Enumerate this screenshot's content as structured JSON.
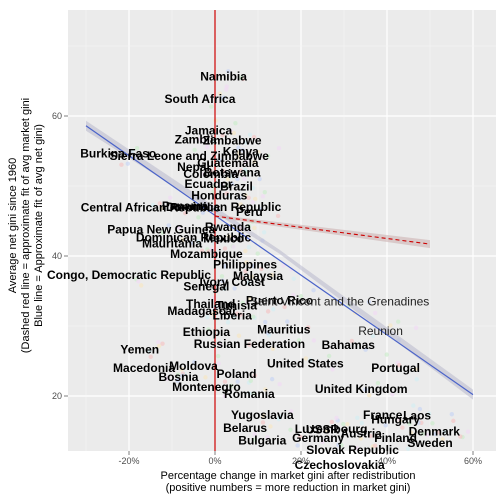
{
  "chart_data": {
    "type": "scatter",
    "xlabel": [
      "Percentage change in market gini after redistribution",
      "(positive numbers = more reduction in market gini)"
    ],
    "ylabel": [
      "Average net gini since 1960",
      "(Dashed red line = approximate fit of avg market gini",
      "Blue line = Approximate fit of avg net gini)"
    ],
    "xlim": [
      -0.35,
      0.62
    ],
    "ylim": [
      13,
      73
    ],
    "x_ticks": [
      {
        "value": -0.2,
        "label": "-20%"
      },
      {
        "value": 0,
        "label": "0%"
      },
      {
        "value": 0.2,
        "label": "20%"
      },
      {
        "value": 0.4,
        "label": "40%"
      },
      {
        "value": 0.6,
        "label": "60%"
      }
    ],
    "y_ticks": [
      {
        "value": 20,
        "label": "20"
      },
      {
        "value": 40,
        "label": "40"
      },
      {
        "value": 60,
        "label": "60"
      }
    ],
    "grid": true,
    "background": "#ebebeb",
    "vline": {
      "x": 0,
      "color": "#cc0000"
    },
    "fit_lines": [
      {
        "name": "net",
        "style": "solid",
        "color": "#4a63c9",
        "x": [
          -0.3,
          0.6
        ],
        "y": [
          58.6,
          20.2
        ]
      },
      {
        "name": "market",
        "style": "dashed",
        "color": "#cc0000",
        "x": [
          0.0,
          0.5
        ],
        "y": [
          45.7,
          41.7
        ]
      }
    ],
    "labels": [
      {
        "text": "Namibia",
        "x": 0.02,
        "y": 65.5
      },
      {
        "text": "South Africa",
        "x": -0.035,
        "y": 62.3
      },
      {
        "text": "Jamaica",
        "x": -0.015,
        "y": 57.8
      },
      {
        "text": "Zambia",
        "x": -0.045,
        "y": 56.5
      },
      {
        "text": "Zimbabwe",
        "x": 0.04,
        "y": 56.4
      },
      {
        "text": "Burkina Faso",
        "x": -0.225,
        "y": 54.5
      },
      {
        "text": "Sierra Leone and Zimbabwe",
        "x": -0.06,
        "y": 54.2
      },
      {
        "text": "Kenya",
        "x": 0.06,
        "y": 54.8
      },
      {
        "text": "Guatemala",
        "x": 0.03,
        "y": 53.2
      },
      {
        "text": "Nepal",
        "x": -0.05,
        "y": 52.6
      },
      {
        "text": "Botswana",
        "x": 0.04,
        "y": 51.8
      },
      {
        "text": "Colombia",
        "x": -0.01,
        "y": 51.6
      },
      {
        "text": "Ecuador",
        "x": -0.015,
        "y": 50.2
      },
      {
        "text": "Brazil",
        "x": 0.05,
        "y": 49.8
      },
      {
        "text": "Honduras",
        "x": 0.01,
        "y": 48.5
      },
      {
        "text": "Central African Republic",
        "x": -0.15,
        "y": 46.8
      },
      {
        "text": "Dominican Republic",
        "x": 0.02,
        "y": 46.9
      },
      {
        "text": "Panama",
        "x": -0.07,
        "y": 47.0
      },
      {
        "text": "Peru",
        "x": 0.08,
        "y": 46.2
      },
      {
        "text": "Papua New Guinea",
        "x": -0.125,
        "y": 43.7
      },
      {
        "text": "Rwanda",
        "x": 0.03,
        "y": 44.0
      },
      {
        "text": "Dominican Republic",
        "x": -0.05,
        "y": 42.5
      },
      {
        "text": "Mexico",
        "x": 0.02,
        "y": 42.4
      },
      {
        "text": "Mauritania",
        "x": -0.1,
        "y": 41.7
      },
      {
        "text": "Mozambique",
        "x": -0.02,
        "y": 40.2
      },
      {
        "text": "Philippines",
        "x": 0.07,
        "y": 38.7
      },
      {
        "text": "Congo, Democratic Republic",
        "x": -0.2,
        "y": 37.2
      },
      {
        "text": "Malaysia",
        "x": 0.1,
        "y": 37.0
      },
      {
        "text": "Ivory Coast",
        "x": 0.04,
        "y": 36.2
      },
      {
        "text": "Senegal",
        "x": -0.02,
        "y": 35.5
      },
      {
        "text": "Puerto Rico",
        "x": 0.15,
        "y": 33.5
      },
      {
        "text": "Saint Vincent and the Grenadines",
        "x": 0.29,
        "y": 33.4
      },
      {
        "text": "Thailand",
        "x": -0.01,
        "y": 33.0
      },
      {
        "text": "Tunisia",
        "x": 0.05,
        "y": 32.8
      },
      {
        "text": "Madagascar",
        "x": -0.03,
        "y": 32.0
      },
      {
        "text": "Liberia",
        "x": 0.04,
        "y": 31.4
      },
      {
        "text": "Mauritius",
        "x": 0.16,
        "y": 29.4
      },
      {
        "text": "Reunion",
        "x": 0.385,
        "y": 29.2
      },
      {
        "text": "Ethiopia",
        "x": -0.02,
        "y": 29.0
      },
      {
        "text": "Yemen",
        "x": -0.175,
        "y": 26.5
      },
      {
        "text": "Russian Federation",
        "x": 0.08,
        "y": 27.3
      },
      {
        "text": "Bahamas",
        "x": 0.31,
        "y": 27.2
      },
      {
        "text": "Macedonia",
        "x": -0.165,
        "y": 23.9
      },
      {
        "text": "Moldova",
        "x": -0.05,
        "y": 24.2
      },
      {
        "text": "United States",
        "x": 0.21,
        "y": 24.5
      },
      {
        "text": "Portugal",
        "x": 0.42,
        "y": 23.9
      },
      {
        "text": "Bosnia",
        "x": -0.085,
        "y": 22.6
      },
      {
        "text": "Poland",
        "x": 0.05,
        "y": 23.0
      },
      {
        "text": "Montenegro",
        "x": -0.02,
        "y": 21.2
      },
      {
        "text": "United Kingdom",
        "x": 0.34,
        "y": 20.9
      },
      {
        "text": "Romania",
        "x": 0.08,
        "y": 20.2
      },
      {
        "text": "Yugoslavia",
        "x": 0.11,
        "y": 17.2
      },
      {
        "text": "France",
        "x": 0.39,
        "y": 17.2
      },
      {
        "text": "Laos",
        "x": 0.47,
        "y": 17.1
      },
      {
        "text": "Hungary",
        "x": 0.42,
        "y": 16.5
      },
      {
        "text": "USSR",
        "x": 0.25,
        "y": 15.1
      },
      {
        "text": "Belarus",
        "x": 0.07,
        "y": 15.3
      },
      {
        "text": "Luxembourg",
        "x": 0.27,
        "y": 15.2
      },
      {
        "text": "Austria",
        "x": 0.34,
        "y": 14.5
      },
      {
        "text": "Denmark",
        "x": 0.51,
        "y": 14.8
      },
      {
        "text": "Bulgaria",
        "x": 0.11,
        "y": 13.5
      },
      {
        "text": "Germany",
        "x": 0.24,
        "y": 13.9
      },
      {
        "text": "Finland",
        "x": 0.42,
        "y": 13.9
      },
      {
        "text": "Sweden",
        "x": 0.5,
        "y": 13.2
      },
      {
        "text": "Slovak Republic",
        "x": 0.32,
        "y": 12.2
      },
      {
        "text": "Czechoslovakia",
        "x": 0.29,
        "y": 10.0
      }
    ]
  }
}
